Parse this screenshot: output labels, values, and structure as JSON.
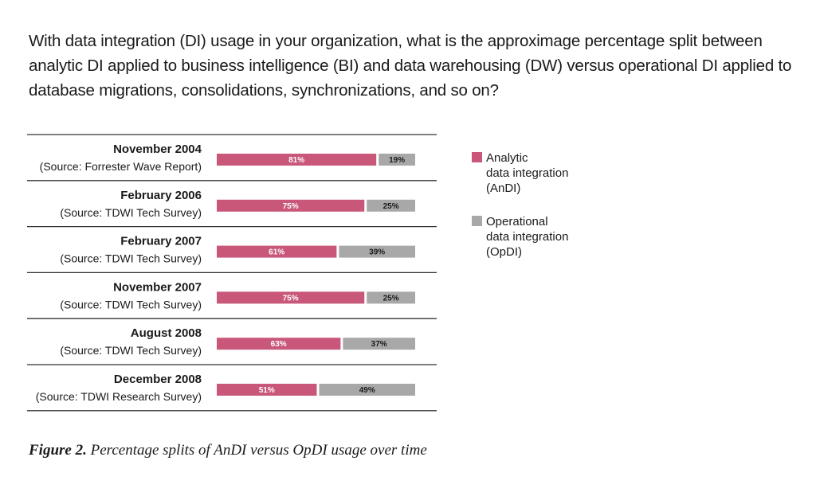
{
  "question": "With data integration (DI) usage in your organization, what is the approximage percentage split between analytic DI applied to business intelligence (BI) and data warehousing (DW) versus operational DI applied to database migrations, consolidations, synchronizations, and so on?",
  "caption": {
    "figure": "Figure 2.",
    "text": " Percentage splits of AnDI versus OpDI usage over time"
  },
  "colors": {
    "analytic": "#c9577a",
    "operational": "#a8a8a8",
    "rule": "#333333"
  },
  "chart_data": {
    "type": "bar",
    "orientation": "horizontal",
    "stacked": true,
    "percent": true,
    "rows": [
      {
        "title": "November 2004",
        "source": "(Source: Forrester Wave Report)",
        "analytic": 81,
        "operational": 19
      },
      {
        "title": "February 2006",
        "source": "(Source: TDWI Tech Survey)",
        "analytic": 75,
        "operational": 25
      },
      {
        "title": "February 2007",
        "source": "(Source: TDWI Tech Survey)",
        "analytic": 61,
        "operational": 39
      },
      {
        "title": "November 2007",
        "source": "(Source: TDWI Tech Survey)",
        "analytic": 75,
        "operational": 25
      },
      {
        "title": "August 2008",
        "source": "(Source: TDWI Tech Survey)",
        "analytic": 63,
        "operational": 37
      },
      {
        "title": "December 2008",
        "source": "(Source: TDWI Research Survey)",
        "analytic": 51,
        "operational": 49
      }
    ],
    "series": [
      {
        "key": "analytic",
        "name": [
          "Analytic",
          "data integration",
          "(AnDI)"
        ]
      },
      {
        "key": "operational",
        "name": [
          "Operational",
          "data integration",
          "(OpDI)"
        ]
      }
    ],
    "legend_position": "right",
    "grid": false
  }
}
